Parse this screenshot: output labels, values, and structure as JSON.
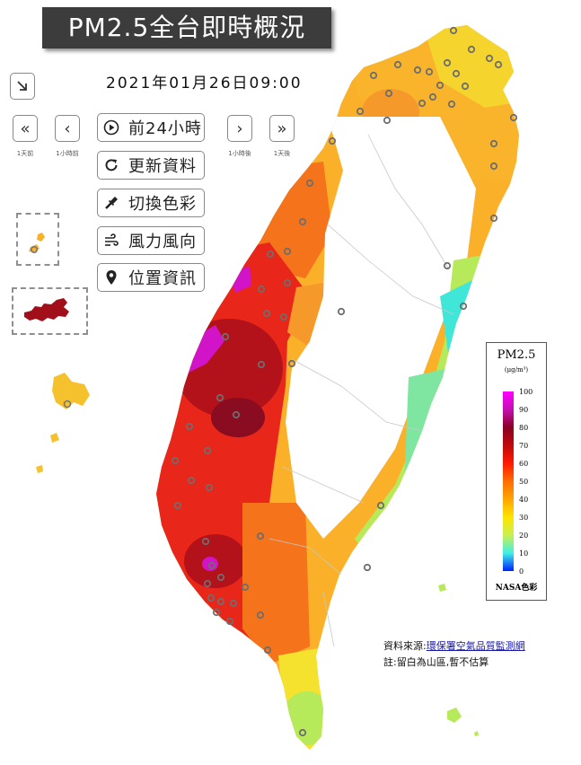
{
  "title": "PM2.5全台即時概況",
  "timestamp": "2021年01月26日09:00",
  "nav": {
    "day_back_label": "1天前",
    "hour_back_label": "1小時前",
    "hour_forward_label": "1小時後",
    "day_forward_label": "1天後"
  },
  "menu": {
    "past24": "前24小時",
    "refresh": "更新資料",
    "switch_color": "切換色彩",
    "wind": "風力風向",
    "location": "位置資訊"
  },
  "legend": {
    "title": "PM2.5",
    "unit": "(μg/m³)",
    "ticks": [
      "100",
      "90",
      "80",
      "70",
      "60",
      "50",
      "40",
      "30",
      "20",
      "10",
      "0"
    ],
    "scheme": "NASA色彩"
  },
  "source": {
    "prefix": "資料來源:",
    "link": "環保署空氣品質監測網",
    "note": "註:留白為山區,暫不估算"
  },
  "colors": {
    "magenta": "#d214c8",
    "dark_red": "#a1101a",
    "red": "#e8261a",
    "orange": "#f5731a",
    "amber": "#fbb02a",
    "yellow": "#f5e22e",
    "lime": "#b7ea5a",
    "cyan": "#40e6d8"
  }
}
